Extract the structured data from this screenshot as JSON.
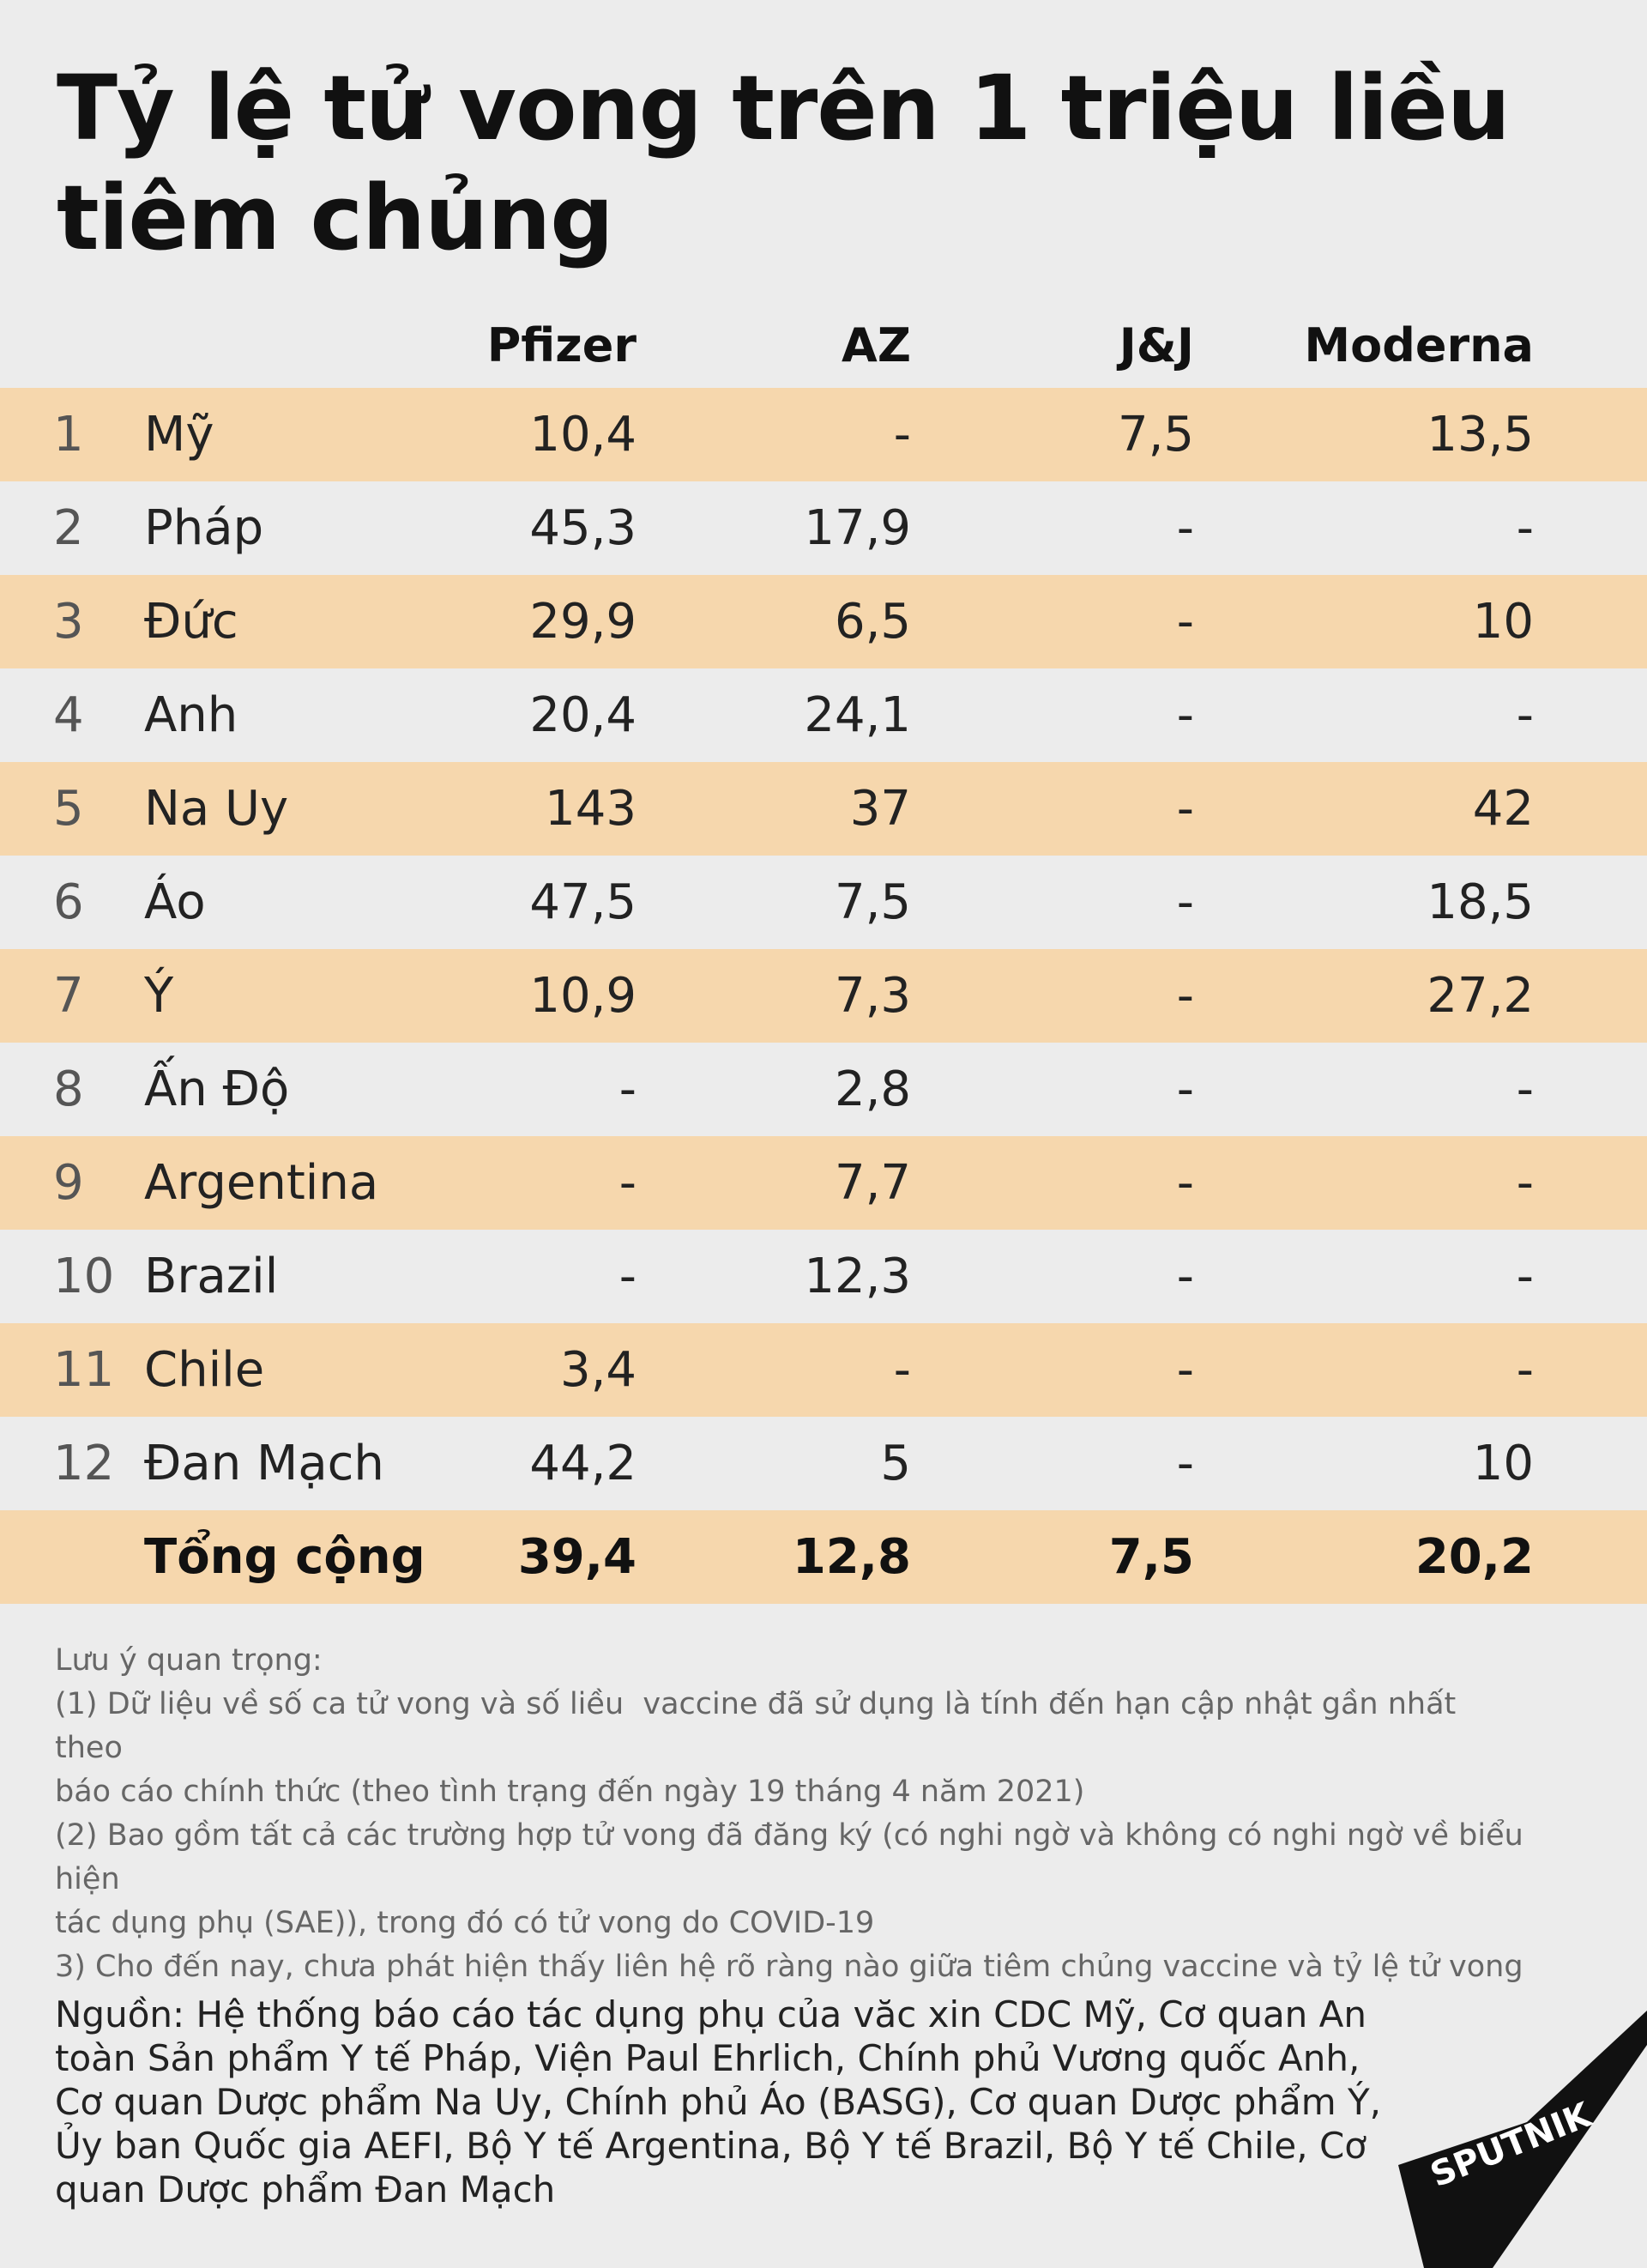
{
  "title": "Tỷ lệ tử vong trên 1 triệu liều tiêm chủng",
  "chart_data": {
    "type": "table",
    "columns": [
      "Pfizer",
      "AZ",
      "J&J",
      "Moderna"
    ],
    "rows": [
      {
        "rank": "1",
        "country": "Mỹ",
        "values": [
          "10,4",
          "-",
          "7,5",
          "13,5"
        ]
      },
      {
        "rank": "2",
        "country": "Pháp",
        "values": [
          "45,3",
          "17,9",
          "-",
          "-"
        ]
      },
      {
        "rank": "3",
        "country": "Đức",
        "values": [
          "29,9",
          "6,5",
          "-",
          "10"
        ]
      },
      {
        "rank": "4",
        "country": "Anh",
        "values": [
          "20,4",
          "24,1",
          "-",
          "-"
        ]
      },
      {
        "rank": "5",
        "country": "Na Uy",
        "values": [
          "143",
          "37",
          "-",
          "42"
        ]
      },
      {
        "rank": "6",
        "country": "Áo",
        "values": [
          "47,5",
          "7,5",
          "-",
          "18,5"
        ]
      },
      {
        "rank": "7",
        "country": "Ý",
        "values": [
          "10,9",
          "7,3",
          "-",
          "27,2"
        ]
      },
      {
        "rank": "8",
        "country": "Ấn Độ",
        "values": [
          "-",
          "2,8",
          "-",
          "-"
        ]
      },
      {
        "rank": "9",
        "country": "Argentina",
        "values": [
          "-",
          "7,7",
          "-",
          "-"
        ]
      },
      {
        "rank": "10",
        "country": "Brazil",
        "values": [
          "-",
          "12,3",
          "-",
          "-"
        ]
      },
      {
        "rank": "11",
        "country": "Chile",
        "values": [
          "3,4",
          "-",
          "-",
          "-"
        ]
      },
      {
        "rank": "12",
        "country": "Đan Mạch",
        "values": [
          "44,2",
          "5",
          "-",
          "10"
        ]
      }
    ],
    "total": {
      "label": "Tổng cộng",
      "values": [
        "39,4",
        "12,8",
        "7,5",
        "20,2"
      ]
    }
  },
  "notes": [
    "Lưu ý quan trọng:",
    "(1) Dữ liệu về số ca tử vong và số liều  vaccine đã sử dụng là tính đến hạn cập nhật gần nhất theo",
    "báo cáo chính thức (theo tình trạng đến ngày 19 tháng 4 năm 2021)",
    "(2) Bao gồm tất cả các trường hợp tử vong đã đăng ký (có nghi ngờ và không có nghi ngờ về biểu",
    "hiện",
    "tác dụng phụ (SAE)), trong đó có tử vong do COVID-19",
    "3) Cho đến nay, chưa phát hiện thấy liên hệ rõ ràng nào giữa tiêm chủng vaccine và tỷ lệ tử vong"
  ],
  "source": "Nguồn: Hệ thống báo cáo tác dụng phụ của văc xin CDC Mỹ, Cơ quan An toàn Sản phẩm Y tế Pháp, Viện Paul Ehrlich, Chính phủ Vương quốc Anh, Cơ quan Dược phẩm Na Uy, Chính phủ Áo (BASG), Cơ quan Dược phẩm Ý, Ủy ban Quốc gia AEFI, Bộ Y tế Argentina, Bộ Y tế Brazil, Bộ Y tế Chile, Cơ quan Dược phẩm Đan Mạch",
  "logo_text": "SPUTNIK",
  "colors": {
    "background": "#ececec",
    "row_highlight": "#f6d7ad",
    "text": "#111111"
  }
}
